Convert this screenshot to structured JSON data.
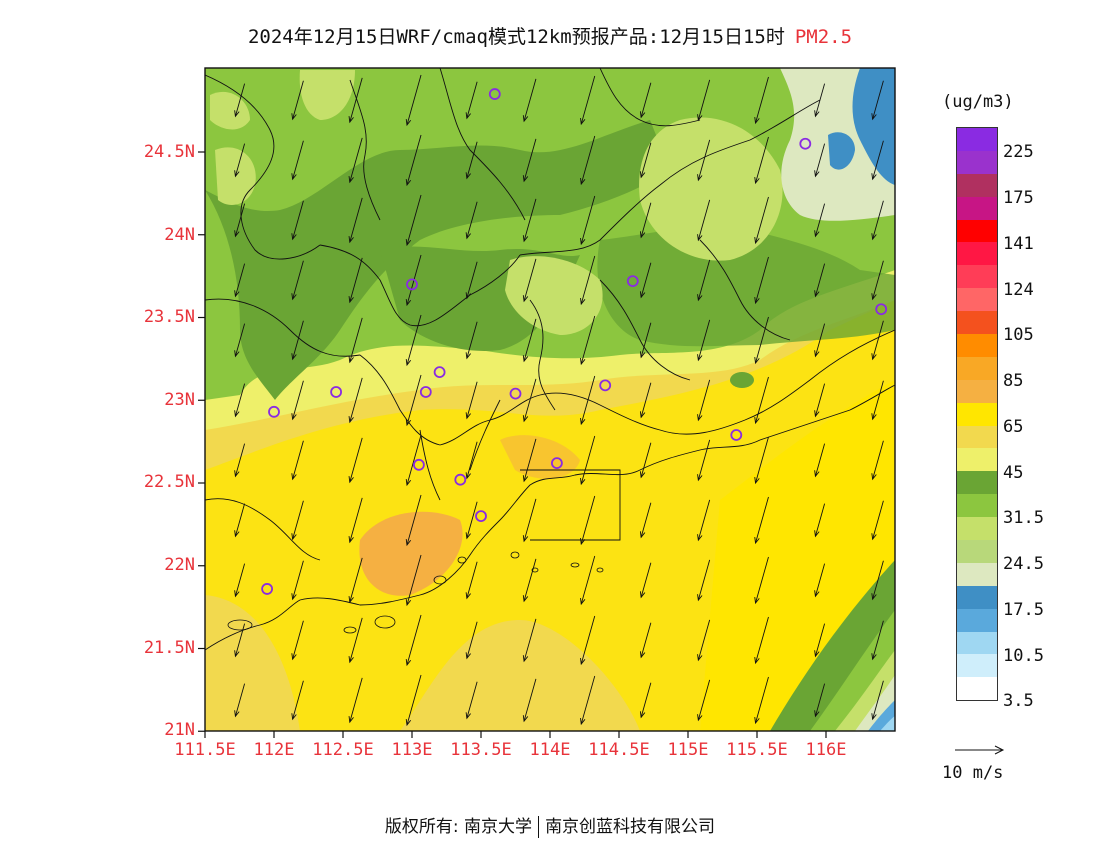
{
  "title": {
    "text": "2024年12月15日WRF/cmaq模式12km预报产品:12月15日15时",
    "variable": "PM2.5"
  },
  "lat_ticks": [
    "24.5N",
    "24N",
    "23.5N",
    "23N",
    "22.5N",
    "22N",
    "21.5N",
    "21N"
  ],
  "lon_ticks": [
    "111.5E",
    "112E",
    "112.5E",
    "113E",
    "113.5E",
    "114E",
    "114.5E",
    "115E",
    "115.5E",
    "116E"
  ],
  "legend": {
    "unit": "(ug/m3)",
    "colors": [
      "#8a2be2",
      "#9a32cd",
      "#b03060",
      "#c71585",
      "#ff0000",
      "#ff1744",
      "#ff3d57",
      "#ff6666",
      "#f4511e",
      "#ff8c00",
      "#f9a825",
      "#f5b042",
      "#ffe600",
      "#f2d94e",
      "#eef06a",
      "#6aa534",
      "#8cc63f",
      "#c5e06a",
      "#b8d87a",
      "#dde8c0",
      "#3f8fc5",
      "#5aa9dc",
      "#9fd7f2",
      "#cfeefb",
      "#ffffff"
    ],
    "labels": [
      "225",
      "175",
      "141",
      "124",
      "105",
      "85",
      "65",
      "45",
      "31.5",
      "24.5",
      "17.5",
      "10.5",
      "3.5"
    ]
  },
  "wind_reference": "10 m/s",
  "footer": {
    "left": "版权所有: 南京大学",
    "right": "南京创蓝科技有限公司"
  },
  "stations": [
    {
      "lon": 113.6,
      "lat": 24.85
    },
    {
      "lon": 115.85,
      "lat": 24.55
    },
    {
      "lon": 113.0,
      "lat": 23.7
    },
    {
      "lon": 114.6,
      "lat": 23.72
    },
    {
      "lon": 116.4,
      "lat": 23.55
    },
    {
      "lon": 113.2,
      "lat": 23.17
    },
    {
      "lon": 113.1,
      "lat": 23.05
    },
    {
      "lon": 112.45,
      "lat": 23.05
    },
    {
      "lon": 113.75,
      "lat": 23.04
    },
    {
      "lon": 114.4,
      "lat": 23.09
    },
    {
      "lon": 112.0,
      "lat": 22.93
    },
    {
      "lon": 115.35,
      "lat": 22.79
    },
    {
      "lon": 113.05,
      "lat": 22.61
    },
    {
      "lon": 113.35,
      "lat": 22.52
    },
    {
      "lon": 114.05,
      "lat": 22.62
    },
    {
      "lon": 113.5,
      "lat": 22.3
    },
    {
      "lon": 111.95,
      "lat": 21.86
    }
  ]
}
